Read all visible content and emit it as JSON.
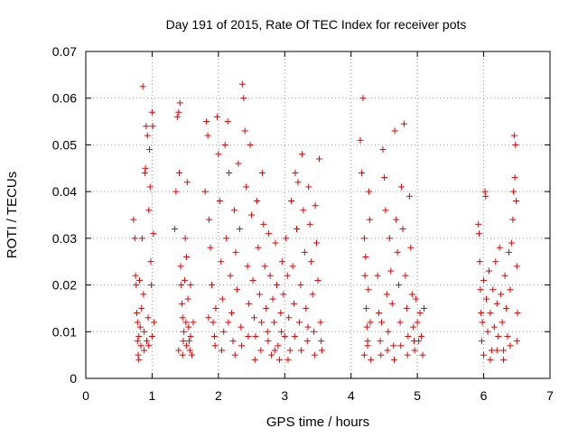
{
  "colors": {
    "marker": "#e00000",
    "axis": "#000000",
    "grid": "#999999",
    "background": "#ffffff"
  },
  "chart_data": {
    "type": "scatter",
    "title": "Day 191 of 2015, Rate Of TEC Index for receiver pots",
    "xlabel": "GPS time / hours",
    "ylabel": "ROTI / TECUs",
    "xlim": [
      0,
      7
    ],
    "ylim": [
      0,
      0.07
    ],
    "xticks": [
      0,
      1,
      2,
      3,
      4,
      5,
      6,
      7
    ],
    "xtick_labels": [
      "0",
      "1",
      "2",
      "3",
      "4",
      "5",
      "6",
      "7"
    ],
    "yticks": [
      0,
      0.01,
      0.02,
      0.03,
      0.04,
      0.05,
      0.06,
      0.07
    ],
    "ytick_labels": [
      "0",
      "0.01",
      "0.02",
      "0.03",
      "0.04",
      "0.05",
      "0.06",
      "0.07"
    ],
    "grid": true,
    "marker": "+",
    "series": [
      {
        "name": "ROTI",
        "points": [
          [
            0.72,
            0.034
          ],
          [
            0.74,
            0.03
          ],
          [
            0.75,
            0.022
          ],
          [
            0.76,
            0.02
          ],
          [
            0.77,
            0.014
          ],
          [
            0.78,
            0.012
          ],
          [
            0.78,
            0.008
          ],
          [
            0.79,
            0.005
          ],
          [
            0.8,
            0.009
          ],
          [
            0.81,
            0.021
          ],
          [
            0.82,
            0.011
          ],
          [
            0.83,
            0.007
          ],
          [
            0.84,
            0.015
          ],
          [
            0.85,
            0.03
          ],
          [
            0.86,
            0.0625
          ],
          [
            0.87,
            0.018
          ],
          [
            0.88,
            0.01
          ],
          [
            0.89,
            0.044
          ],
          [
            0.9,
            0.045
          ],
          [
            0.91,
            0.054
          ],
          [
            0.92,
            0.008
          ],
          [
            0.93,
            0.052
          ],
          [
            0.94,
            0.013
          ],
          [
            0.95,
            0.036
          ],
          [
            0.96,
            0.049
          ],
          [
            0.97,
            0.041
          ],
          [
            0.98,
            0.025
          ],
          [
            0.99,
            0.02
          ],
          [
            1.0,
            0.057
          ],
          [
            1.01,
            0.054
          ],
          [
            1.02,
            0.031
          ],
          [
            1.03,
            0.012
          ],
          [
            0.8,
            0.004
          ],
          [
            0.88,
            0.006
          ],
          [
            0.95,
            0.007
          ],
          [
            1.0,
            0.009
          ],
          [
            1.34,
            0.032
          ],
          [
            1.36,
            0.04
          ],
          [
            1.38,
            0.056
          ],
          [
            1.4,
            0.057
          ],
          [
            1.41,
            0.044
          ],
          [
            1.42,
            0.059
          ],
          [
            1.43,
            0.024
          ],
          [
            1.44,
            0.02
          ],
          [
            1.45,
            0.016
          ],
          [
            1.46,
            0.013
          ],
          [
            1.47,
            0.008
          ],
          [
            1.48,
            0.01
          ],
          [
            1.49,
            0.021
          ],
          [
            1.5,
            0.03
          ],
          [
            1.51,
            0.012
          ],
          [
            1.52,
            0.026
          ],
          [
            1.53,
            0.042
          ],
          [
            1.54,
            0.017
          ],
          [
            1.55,
            0.011
          ],
          [
            1.56,
            0.008
          ],
          [
            1.57,
            0.006
          ],
          [
            1.58,
            0.02
          ],
          [
            1.6,
            0.005
          ],
          [
            1.62,
            0.012
          ],
          [
            1.4,
            0.006
          ],
          [
            1.46,
            0.005
          ],
          [
            1.52,
            0.007
          ],
          [
            1.58,
            0.009
          ],
          [
            1.8,
            0.04
          ],
          [
            1.82,
            0.055
          ],
          [
            1.84,
            0.052
          ],
          [
            1.86,
            0.034
          ],
          [
            1.88,
            0.028
          ],
          [
            1.9,
            0.02
          ],
          [
            1.92,
            0.012
          ],
          [
            1.94,
            0.009
          ],
          [
            1.96,
            0.015
          ],
          [
            1.98,
            0.056
          ],
          [
            2.0,
            0.048
          ],
          [
            2.02,
            0.038
          ],
          [
            2.04,
            0.025
          ],
          [
            2.06,
            0.017
          ],
          [
            2.08,
            0.01
          ],
          [
            2.1,
            0.05
          ],
          [
            2.12,
            0.03
          ],
          [
            2.14,
            0.055
          ],
          [
            2.16,
            0.044
          ],
          [
            2.18,
            0.022
          ],
          [
            2.2,
            0.014
          ],
          [
            2.22,
            0.008
          ],
          [
            2.24,
            0.036
          ],
          [
            2.26,
            0.027
          ],
          [
            2.28,
            0.019
          ],
          [
            2.3,
            0.046
          ],
          [
            2.32,
            0.032
          ],
          [
            2.34,
            0.011
          ],
          [
            2.36,
            0.063
          ],
          [
            2.38,
            0.06
          ],
          [
            2.4,
            0.053
          ],
          [
            2.42,
            0.041
          ],
          [
            2.44,
            0.024
          ],
          [
            2.46,
            0.016
          ],
          [
            2.48,
            0.05
          ],
          [
            2.5,
            0.035
          ],
          [
            2.52,
            0.021
          ],
          [
            2.54,
            0.013
          ],
          [
            2.56,
            0.009
          ],
          [
            2.58,
            0.038
          ],
          [
            2.6,
            0.028
          ],
          [
            2.62,
            0.018
          ],
          [
            2.64,
            0.006
          ],
          [
            2.66,
            0.044
          ],
          [
            2.68,
            0.033
          ],
          [
            2.7,
            0.024
          ],
          [
            2.72,
            0.015
          ],
          [
            2.74,
            0.01
          ],
          [
            2.76,
            0.031
          ],
          [
            2.78,
            0.022
          ],
          [
            2.8,
            0.005
          ],
          [
            2.82,
            0.017
          ],
          [
            2.84,
            0.012
          ],
          [
            2.86,
            0.029
          ],
          [
            2.88,
            0.02
          ],
          [
            2.9,
            0.007
          ],
          [
            2.92,
            0.004
          ],
          [
            2.94,
            0.014
          ],
          [
            2.96,
            0.025
          ],
          [
            2.98,
            0.018
          ],
          [
            3.0,
            0.009
          ],
          [
            3.02,
            0.03
          ],
          [
            3.04,
            0.022
          ],
          [
            3.06,
            0.013
          ],
          [
            3.08,
            0.006
          ],
          [
            3.1,
            0.038
          ],
          [
            3.12,
            0.024
          ],
          [
            3.14,
            0.016
          ],
          [
            3.16,
            0.044
          ],
          [
            3.18,
            0.032
          ],
          [
            3.2,
            0.042
          ],
          [
            3.22,
            0.012
          ],
          [
            3.24,
            0.02
          ],
          [
            3.26,
            0.048
          ],
          [
            3.28,
            0.036
          ],
          [
            3.3,
            0.027
          ],
          [
            3.32,
            0.015
          ],
          [
            3.34,
            0.008
          ],
          [
            3.36,
            0.041
          ],
          [
            3.38,
            0.033
          ],
          [
            3.4,
            0.025
          ],
          [
            3.42,
            0.018
          ],
          [
            3.44,
            0.01
          ],
          [
            3.46,
            0.037
          ],
          [
            3.48,
            0.029
          ],
          [
            3.5,
            0.021
          ],
          [
            3.52,
            0.047
          ],
          [
            3.54,
            0.012
          ],
          [
            3.56,
            0.006
          ],
          [
            1.85,
            0.013
          ],
          [
            1.95,
            0.007
          ],
          [
            2.05,
            0.006
          ],
          [
            2.15,
            0.012
          ],
          [
            2.25,
            0.005
          ],
          [
            2.35,
            0.007
          ],
          [
            2.45,
            0.009
          ],
          [
            2.55,
            0.004
          ],
          [
            2.65,
            0.012
          ],
          [
            2.75,
            0.008
          ],
          [
            2.85,
            0.006
          ],
          [
            2.95,
            0.01
          ],
          [
            3.05,
            0.004
          ],
          [
            3.15,
            0.009
          ],
          [
            3.25,
            0.006
          ],
          [
            3.35,
            0.011
          ],
          [
            3.45,
            0.005
          ],
          [
            3.55,
            0.008
          ],
          [
            4.14,
            0.051
          ],
          [
            4.16,
            0.044
          ],
          [
            4.18,
            0.06
          ],
          [
            4.2,
            0.03
          ],
          [
            4.21,
            0.022
          ],
          [
            4.22,
            0.026
          ],
          [
            4.23,
            0.015
          ],
          [
            4.24,
            0.011
          ],
          [
            4.25,
            0.007
          ],
          [
            4.26,
            0.019
          ],
          [
            4.27,
            0.04
          ],
          [
            4.28,
            0.034
          ],
          [
            4.29,
            0.012
          ],
          [
            4.3,
            0.004
          ],
          [
            4.2,
            0.005
          ],
          [
            4.25,
            0.008
          ],
          [
            4.4,
            0.022
          ],
          [
            4.42,
            0.014
          ],
          [
            4.44,
            0.008
          ],
          [
            4.46,
            0.012
          ],
          [
            4.48,
            0.049
          ],
          [
            4.5,
            0.043
          ],
          [
            4.52,
            0.036
          ],
          [
            4.54,
            0.018
          ],
          [
            4.56,
            0.01
          ],
          [
            4.58,
            0.03
          ],
          [
            4.6,
            0.023
          ],
          [
            4.62,
            0.016
          ],
          [
            4.64,
            0.007
          ],
          [
            4.66,
            0.053
          ],
          [
            4.68,
            0.034
          ],
          [
            4.7,
            0.027
          ],
          [
            4.72,
            0.02
          ],
          [
            4.74,
            0.012
          ],
          [
            4.76,
            0.041
          ],
          [
            4.78,
            0.032
          ],
          [
            4.8,
            0.0545
          ],
          [
            4.82,
            0.022
          ],
          [
            4.84,
            0.015
          ],
          [
            4.86,
            0.009
          ],
          [
            4.88,
            0.039
          ],
          [
            4.9,
            0.028
          ],
          [
            4.92,
            0.018
          ],
          [
            4.94,
            0.011
          ],
          [
            4.96,
            0.006
          ],
          [
            4.98,
            0.017
          ],
          [
            5.0,
            0.012
          ],
          [
            5.02,
            0.008
          ],
          [
            5.04,
            0.014
          ],
          [
            5.06,
            0.009
          ],
          [
            5.08,
            0.005
          ],
          [
            5.1,
            0.015
          ],
          [
            4.45,
            0.005
          ],
          [
            4.55,
            0.006
          ],
          [
            4.65,
            0.004
          ],
          [
            4.75,
            0.007
          ],
          [
            4.85,
            0.005
          ],
          [
            4.95,
            0.008
          ],
          [
            5.92,
            0.033
          ],
          [
            5.93,
            0.031
          ],
          [
            5.94,
            0.025
          ],
          [
            5.95,
            0.019
          ],
          [
            5.96,
            0.014
          ],
          [
            5.97,
            0.008
          ],
          [
            5.98,
            0.012
          ],
          [
            6.0,
            0.021
          ],
          [
            6.02,
            0.04
          ],
          [
            6.03,
            0.039
          ],
          [
            6.04,
            0.017
          ],
          [
            6.06,
            0.01
          ],
          [
            6.08,
            0.023
          ],
          [
            6.1,
            0.014
          ],
          [
            6.12,
            0.006
          ],
          [
            6.14,
            0.019
          ],
          [
            6.16,
            0.011
          ],
          [
            6.18,
            0.025
          ],
          [
            6.2,
            0.016
          ],
          [
            6.22,
            0.009
          ],
          [
            6.24,
            0.028
          ],
          [
            6.26,
            0.018
          ],
          [
            6.28,
            0.012
          ],
          [
            6.3,
            0.006
          ],
          [
            6.32,
            0.022
          ],
          [
            6.34,
            0.015
          ],
          [
            6.36,
            0.009
          ],
          [
            6.38,
            0.027
          ],
          [
            6.4,
            0.019
          ],
          [
            6.42,
            0.029
          ],
          [
            6.44,
            0.034
          ],
          [
            6.45,
            0.04
          ],
          [
            6.46,
            0.052
          ],
          [
            6.47,
            0.043
          ],
          [
            6.48,
            0.05
          ],
          [
            6.49,
            0.038
          ],
          [
            6.5,
            0.024
          ],
          [
            6.51,
            0.014
          ],
          [
            6.0,
            0.005
          ],
          [
            6.1,
            0.004
          ],
          [
            6.2,
            0.006
          ],
          [
            6.3,
            0.004
          ],
          [
            6.4,
            0.007
          ],
          [
            6.5,
            0.008
          ]
        ]
      }
    ]
  }
}
